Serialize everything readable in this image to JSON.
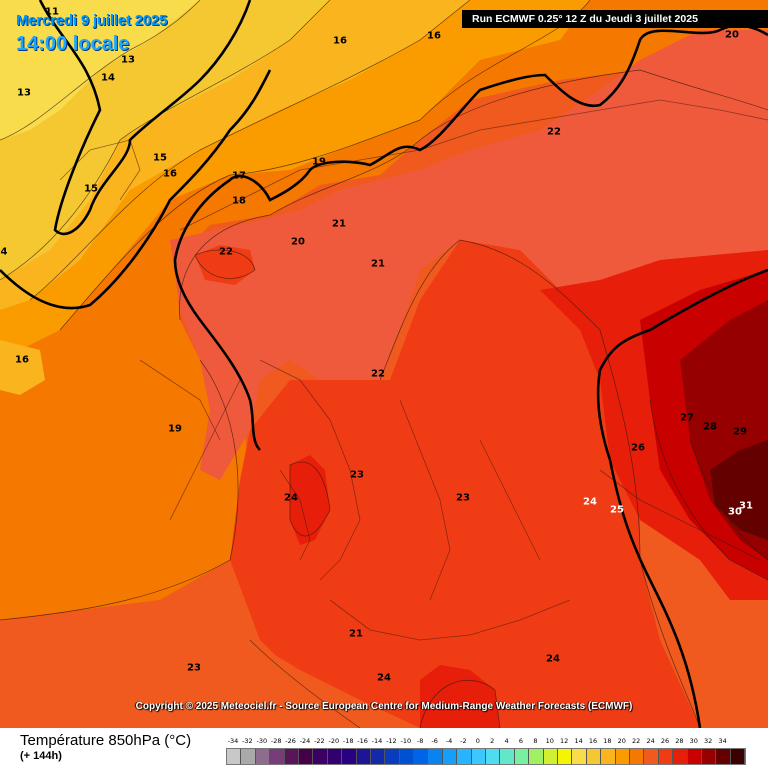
{
  "header": {
    "date_label": "Mercredi 9 juillet 2025",
    "time_label": "14:00 locale",
    "run_label": "Run ECMWF 0.25° 12 Z du Jeudi 3 juillet 2025"
  },
  "copyright": "Copyright © 2025 Meteociel.fr - Source European Centre for Medium-Range Weather Forecasts (ECMWF)",
  "legend": {
    "title": "Température 850hPa (°C)",
    "subtitle": "(+ 144h)",
    "ticks": [
      "-34",
      "-32",
      "-30",
      "-28",
      "-26",
      "-24",
      "-22",
      "-20",
      "-18",
      "-16",
      "-14",
      "-12",
      "-10",
      "-8",
      "-6",
      "-4",
      "-2",
      "0",
      "2",
      "4",
      "6",
      "8",
      "10",
      "12",
      "14",
      "16",
      "18",
      "20",
      "22",
      "24",
      "26",
      "28",
      "30",
      "32",
      "34"
    ],
    "colors": [
      "#c8c8c8",
      "#aaaaaa",
      "#8c6e8c",
      "#783c78",
      "#5a145a",
      "#46004a",
      "#3c0064",
      "#32006e",
      "#280082",
      "#1e1496",
      "#1428aa",
      "#0a3cbe",
      "#0050d2",
      "#0064e6",
      "#0a82f0",
      "#14a0fa",
      "#28b4ff",
      "#3cc8ff",
      "#50dcf0",
      "#64e6c8",
      "#78f0a0",
      "#a0f064",
      "#d2f032",
      "#f5f500",
      "#f8dc4c",
      "#f5c832",
      "#fab41e",
      "#fa9b00",
      "#f57800",
      "#f05a1e",
      "#f03c14",
      "#e61e0a",
      "#c80000",
      "#960000",
      "#640000",
      "#3c0000"
    ]
  },
  "isotherm_labels": [
    {
      "text": "11"
    },
    {
      "text": "13"
    },
    {
      "text": "13"
    },
    {
      "text": "14"
    },
    {
      "text": "15"
    },
    {
      "text": "15"
    },
    {
      "text": "16"
    },
    {
      "text": "16"
    },
    {
      "text": "16"
    },
    {
      "text": "17"
    },
    {
      "text": "18"
    },
    {
      "text": "19"
    },
    {
      "text": "20"
    },
    {
      "text": "21"
    },
    {
      "text": "21"
    },
    {
      "text": "22"
    },
    {
      "text": "22"
    },
    {
      "text": "22"
    },
    {
      "text": "19"
    },
    {
      "text": "23"
    },
    {
      "text": "24"
    },
    {
      "text": "23"
    },
    {
      "text": "26"
    },
    {
      "text": "27"
    },
    {
      "text": "28"
    },
    {
      "text": "29"
    },
    {
      "text": "24"
    },
    {
      "text": "25"
    },
    {
      "text": "31"
    },
    {
      "text": "30"
    },
    {
      "text": "21"
    },
    {
      "text": "24"
    },
    {
      "text": "23"
    },
    {
      "text": "24"
    },
    {
      "text": "4"
    },
    {
      "text": "16"
    },
    {
      "text": "20"
    }
  ]
}
